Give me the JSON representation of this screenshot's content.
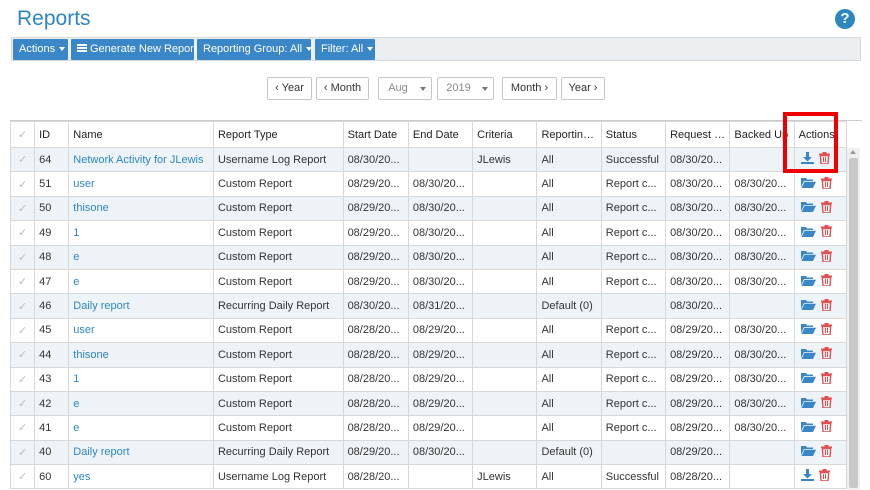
{
  "page": {
    "title": "Reports",
    "help": "?"
  },
  "toolbar": {
    "actions_label": "Actions",
    "generate_label": "Generate New Report",
    "reporting_group_label": "Reporting Group: All",
    "filter_label": "Filter: All"
  },
  "navigation": {
    "prev_year": "‹ Year",
    "prev_month": "‹ Month",
    "month_value": "Aug",
    "year_value": "2019",
    "next_month": "Month ›",
    "next_year": "Year ›"
  },
  "table": {
    "columns": [
      "ID",
      "Name",
      "Report Type",
      "Start Date",
      "End Date",
      "Criteria",
      "Reporting Group",
      "Status",
      "Request Date",
      "Backed Up",
      "Actions"
    ],
    "rows": [
      {
        "id": "64",
        "name": "Network Activity for JLewis",
        "type": "Username Log Report",
        "start": "08/30/20...",
        "end": "",
        "criteria": "JLewis",
        "group": "All",
        "status": "Successful",
        "request": "08/30/20...",
        "backed": "",
        "actions": [
          "download-icon",
          "trash-icon"
        ]
      },
      {
        "id": "51",
        "name": "user",
        "type": "Custom Report",
        "start": "08/29/20...",
        "end": "08/30/20...",
        "criteria": "",
        "group": "All",
        "status": "Report c...",
        "request": "08/30/20...",
        "backed": "08/30/20...",
        "actions": [
          "folder-icon",
          "trash-icon"
        ]
      },
      {
        "id": "50",
        "name": "thisone",
        "type": "Custom Report",
        "start": "08/29/20...",
        "end": "08/30/20...",
        "criteria": "",
        "group": "All",
        "status": "Report c...",
        "request": "08/30/20...",
        "backed": "08/30/20...",
        "actions": [
          "folder-icon",
          "trash-icon"
        ]
      },
      {
        "id": "49",
        "name": "1",
        "type": "Custom Report",
        "start": "08/29/20...",
        "end": "08/30/20...",
        "criteria": "",
        "group": "All",
        "status": "Report c...",
        "request": "08/30/20...",
        "backed": "08/30/20...",
        "actions": [
          "folder-icon",
          "trash-icon"
        ]
      },
      {
        "id": "48",
        "name": "e",
        "type": "Custom Report",
        "start": "08/29/20...",
        "end": "08/30/20...",
        "criteria": "",
        "group": "All",
        "status": "Report c...",
        "request": "08/30/20...",
        "backed": "08/30/20...",
        "actions": [
          "folder-icon",
          "trash-icon"
        ]
      },
      {
        "id": "47",
        "name": "e",
        "type": "Custom Report",
        "start": "08/29/20...",
        "end": "08/30/20...",
        "criteria": "",
        "group": "All",
        "status": "Report c...",
        "request": "08/30/20...",
        "backed": "08/30/20...",
        "actions": [
          "folder-icon",
          "trash-icon"
        ]
      },
      {
        "id": "46",
        "name": "Daily report",
        "type": "Recurring Daily Report",
        "start": "08/30/20...",
        "end": "08/31/20...",
        "criteria": "",
        "group": "Default (0)",
        "status": "",
        "request": "08/30/20...",
        "backed": "",
        "actions": [
          "folder-icon",
          "trash-icon"
        ]
      },
      {
        "id": "45",
        "name": "user",
        "type": "Custom Report",
        "start": "08/28/20...",
        "end": "08/29/20...",
        "criteria": "",
        "group": "All",
        "status": "Report c...",
        "request": "08/29/20...",
        "backed": "08/30/20...",
        "actions": [
          "folder-icon",
          "trash-icon"
        ]
      },
      {
        "id": "44",
        "name": "thisone",
        "type": "Custom Report",
        "start": "08/28/20...",
        "end": "08/29/20...",
        "criteria": "",
        "group": "All",
        "status": "Report c...",
        "request": "08/29/20...",
        "backed": "08/30/20...",
        "actions": [
          "folder-icon",
          "trash-icon"
        ]
      },
      {
        "id": "43",
        "name": "1",
        "type": "Custom Report",
        "start": "08/28/20...",
        "end": "08/29/20...",
        "criteria": "",
        "group": "All",
        "status": "Report c...",
        "request": "08/29/20...",
        "backed": "08/30/20...",
        "actions": [
          "folder-icon",
          "trash-icon"
        ]
      },
      {
        "id": "42",
        "name": "e",
        "type": "Custom Report",
        "start": "08/28/20...",
        "end": "08/29/20...",
        "criteria": "",
        "group": "All",
        "status": "Report c...",
        "request": "08/29/20...",
        "backed": "08/30/20...",
        "actions": [
          "folder-icon",
          "trash-icon"
        ]
      },
      {
        "id": "41",
        "name": "e",
        "type": "Custom Report",
        "start": "08/28/20...",
        "end": "08/29/20...",
        "criteria": "",
        "group": "All",
        "status": "Report c...",
        "request": "08/29/20...",
        "backed": "08/30/20...",
        "actions": [
          "folder-icon",
          "trash-icon"
        ]
      },
      {
        "id": "40",
        "name": "Daily report",
        "type": "Recurring Daily Report",
        "start": "08/29/20...",
        "end": "08/30/20...",
        "criteria": "",
        "group": "Default (0)",
        "status": "",
        "request": "08/29/20...",
        "backed": "",
        "actions": [
          "folder-icon",
          "trash-icon"
        ]
      },
      {
        "id": "60",
        "name": "yes",
        "type": "Username Log Report",
        "start": "08/28/20...",
        "end": "",
        "criteria": "JLewis",
        "group": "All",
        "status": "Successful",
        "request": "08/28/20...",
        "backed": "",
        "actions": [
          "download-icon",
          "trash-icon"
        ]
      }
    ]
  },
  "colors": {
    "accent": "#2e86c1",
    "toolbar_button": "#3a87c8",
    "delete": "#e05050",
    "highlight": "#e00000"
  }
}
